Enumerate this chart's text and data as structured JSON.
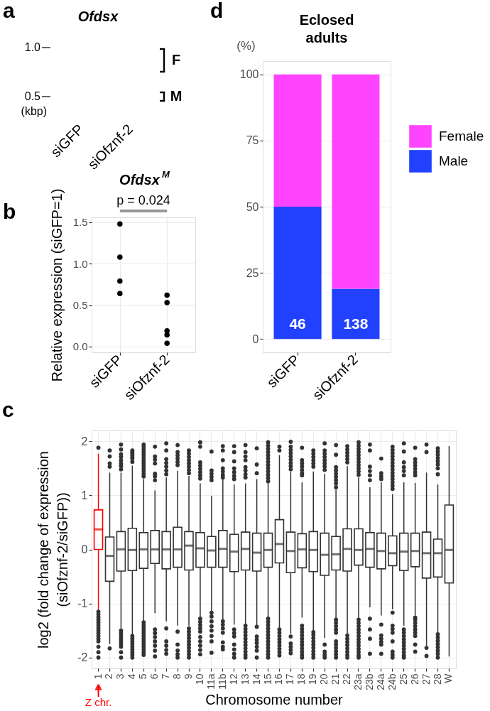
{
  "chart_data": [
    {
      "type": "other",
      "title": "Ofdsx",
      "categories": [
        "siGFP",
        "siOfznf-2"
      ],
      "annotations": [
        "a",
        "1.0",
        "0.5",
        "(kbp)",
        "F",
        "M"
      ]
    },
    {
      "type": "scatter",
      "title": "Ofdsx$^{M}$",
      "categories": [
        "siGFP",
        "siOfznf-2"
      ],
      "series": [
        {
          "color": "#000000",
          "values": [
            1.48,
            0.62
          ]
        },
        {
          "color": "#000000",
          "values": [
            1.08,
            0.53
          ]
        },
        {
          "color": "#000000",
          "values": [
            0.79,
            0.19
          ]
        },
        {
          "color": "#000000",
          "values": [
            0.64,
            0.14
          ]
        },
        {
          "color": "#000000",
          "values": [
            null,
            0.04
          ]
        }
      ],
      "marker": "circle",
      "ylim": [
        -0.07,
        1.56
      ],
      "yticks": [
        {
          "value": 0,
          "label": "0.0"
        },
        0.5,
        {
          "value": 1,
          "label": "1.0"
        },
        1.5
      ],
      "ylabel": "Relative expression (siGFP=1)",
      "grid": true,
      "annotations": [
        "b",
        "p = 0.024"
      ]
    },
    {
      "type": "bar",
      "title": "Eclosed\nadults",
      "categories": [
        "siGFP",
        "siOfznf-2"
      ],
      "series": [
        {
          "name": "Male",
          "color": "#2141ff",
          "values": [
            50,
            19
          ]
        },
        {
          "name": "Female",
          "color": "#ff44ff",
          "values": [
            50,
            81
          ]
        }
      ],
      "stacked": true,
      "ylim": [
        -5,
        105
      ],
      "yticks": [
        0,
        25,
        50,
        75,
        100
      ],
      "ylabel": "(%)",
      "grid": "y",
      "legend": "right",
      "annotations": [
        "d",
        "46",
        "138"
      ]
    },
    {
      "type": "box",
      "categories": [
        "1",
        "2",
        "3",
        "4",
        "5",
        "6",
        "7",
        "8",
        "9",
        "10",
        "11a",
        "11b",
        "12",
        "13",
        "14",
        "15",
        "16",
        "17",
        "18",
        "19",
        "20",
        "21",
        "22",
        "23a",
        "23b",
        "24a",
        "24b",
        "25",
        "26",
        "27",
        "28",
        "W"
      ],
      "boxes": [
        {
          "low": -1.12,
          "q1": 0.0,
          "median": 0.37,
          "q3": 0.73,
          "high": 1.77,
          "outliers": [
            1.88,
            -1.15,
            -1.2,
            -1.25,
            -1.3,
            -1.35,
            -1.4,
            -1.45,
            -1.5,
            -1.55,
            -1.6,
            -1.65,
            -1.7,
            -1.8,
            -1.9,
            -2.0
          ]
        },
        {
          "low": -1.75,
          "q1": -0.59,
          "median": -0.12,
          "q3": 0.23,
          "high": 1.42,
          "outliers": [
            1.83,
            1.72,
            1.59,
            1.53,
            -1.83
          ]
        },
        {
          "low": -1.46,
          "q1": -0.4,
          "median": 0.0,
          "q3": 0.33,
          "high": 1.42,
          "outliers": [
            1.94,
            1.85,
            1.76,
            1.71,
            1.65,
            1.59,
            1.54,
            1.48,
            -1.5,
            -1.55,
            -1.6,
            -1.65,
            -1.7,
            -1.75,
            -1.8,
            -1.9,
            -2.0
          ]
        },
        {
          "low": -1.57,
          "q1": -0.39,
          "median": -0.01,
          "q3": 0.39,
          "high": 1.55,
          "outliers": [
            1.83,
            1.8,
            1.77,
            1.74,
            1.71,
            1.68,
            1.62,
            -1.6,
            -1.65,
            -1.7,
            -1.75,
            -1.8,
            -1.85,
            -1.9,
            -1.95,
            -2.0
          ]
        },
        {
          "low": -1.33,
          "q1": -0.35,
          "median": 0.0,
          "q3": 0.31,
          "high": 1.3,
          "outliers": [
            1.94,
            1.9,
            1.85,
            1.8,
            1.75,
            1.7,
            1.65,
            1.6,
            1.55,
            1.5,
            1.45,
            1.4,
            1.35,
            -1.35,
            -1.4,
            -1.45,
            -1.5,
            -1.55,
            -1.6,
            -1.65,
            -1.7,
            -1.75,
            -1.8,
            -1.85,
            -1.9,
            -1.95
          ]
        },
        {
          "low": -1.18,
          "q1": -0.26,
          "median": 0.0,
          "q3": 0.35,
          "high": 1.09,
          "outliers": [
            1.9,
            1.72,
            1.66,
            1.59,
            1.4,
            1.35,
            1.28,
            -1.48,
            -1.55,
            -1.62,
            -1.7,
            -1.78,
            -1.87,
            -1.98
          ]
        },
        {
          "low": -1.33,
          "q1": -0.36,
          "median": 0.0,
          "q3": 0.33,
          "high": 1.33,
          "outliers": [
            1.96,
            1.83,
            1.67,
            1.6,
            1.53,
            1.46,
            1.39,
            -1.46,
            -1.7,
            -1.78,
            -1.86,
            -1.93
          ]
        },
        {
          "low": -1.41,
          "q1": -0.33,
          "median": 0.0,
          "q3": 0.41,
          "high": 1.45,
          "outliers": [
            1.93,
            1.8,
            1.74,
            1.68,
            1.62,
            1.56,
            -1.52,
            -1.76,
            -1.87,
            -1.94,
            -2.0
          ]
        },
        {
          "low": -1.41,
          "q1": -0.38,
          "median": 0.07,
          "q3": 0.33,
          "high": 1.36,
          "outliers": [
            1.83,
            1.77,
            1.71,
            1.65,
            1.59,
            1.53,
            1.47,
            1.41,
            -1.46,
            -1.52,
            -1.58,
            -1.64,
            -1.7,
            -1.76,
            -1.82,
            -1.88,
            -1.94,
            -2.0
          ]
        },
        {
          "low": -1.26,
          "q1": -0.33,
          "median": 0.02,
          "q3": 0.31,
          "high": 1.22,
          "outliers": [
            1.98,
            1.9,
            1.61,
            1.55,
            1.49,
            1.43,
            1.37,
            1.31,
            -1.28,
            -1.34,
            -1.4,
            -1.46,
            -1.52,
            -1.62,
            -1.7,
            -1.78,
            -1.86,
            -1.94
          ]
        },
        {
          "low": -1.15,
          "q1": -0.33,
          "median": -0.02,
          "q3": 0.24,
          "high": 0.99,
          "outliers": [
            1.81,
            1.46,
            1.4,
            1.34,
            1.28,
            -1.17,
            -1.24,
            -1.33,
            -1.42,
            -1.5,
            -1.6,
            -1.7,
            -1.91
          ]
        },
        {
          "low": -1.3,
          "q1": -0.33,
          "median": 0.01,
          "q3": 0.35,
          "high": 1.3,
          "outliers": [
            1.91,
            1.83,
            1.65,
            1.5,
            1.44,
            1.38,
            1.33,
            -1.33,
            -1.39,
            -1.46,
            -1.54,
            -1.72,
            -1.8,
            -1.85
          ]
        },
        {
          "low": -1.39,
          "q1": -0.41,
          "median": -0.04,
          "q3": 0.28,
          "high": 1.2,
          "outliers": [
            1.91,
            1.8,
            1.63,
            1.5,
            1.43,
            1.36,
            1.3,
            -1.48,
            -1.55,
            -1.61,
            -1.76,
            -1.85,
            -1.93,
            -2.0
          ]
        },
        {
          "low": -1.39,
          "q1": -0.38,
          "median": 0.01,
          "q3": 0.32,
          "high": 1.22,
          "outliers": [
            1.93,
            1.8,
            1.72,
            1.65,
            1.52,
            1.46,
            1.39,
            1.33,
            -1.41,
            -1.47,
            -1.53,
            -1.59,
            -1.65,
            -1.71,
            -1.77,
            -1.83,
            -1.89,
            -1.95,
            -2.0
          ]
        },
        {
          "low": -1.41,
          "q1": -0.4,
          "median": -0.06,
          "q3": 0.3,
          "high": 1.3,
          "outliers": [
            1.87,
            1.57,
            1.41,
            -1.43,
            -1.61,
            -1.67,
            -1.73,
            -1.8,
            -1.87,
            -2.0
          ]
        },
        {
          "low": -1.26,
          "q1": -0.33,
          "median": -0.01,
          "q3": 0.3,
          "high": 1.24,
          "outliers": [
            1.98,
            1.92,
            1.86,
            1.8,
            1.74,
            1.68,
            1.62,
            1.56,
            1.5,
            1.44,
            1.38,
            1.32,
            1.26,
            -1.28,
            -1.34,
            -1.4,
            -1.46,
            -1.52,
            -1.58,
            -1.64,
            -1.7,
            -1.76,
            -1.82,
            -1.88,
            -1.94,
            -2.0
          ]
        },
        {
          "low": -1.45,
          "q1": -0.25,
          "median": 0.1,
          "q3": 0.55,
          "high": 1.74,
          "outliers": [
            1.9,
            1.83,
            -1.48,
            -1.54,
            -1.6,
            -1.66,
            -1.72,
            -1.78,
            -1.84,
            -1.9,
            -1.96
          ]
        },
        {
          "low": -1.56,
          "q1": -0.43,
          "median": -0.03,
          "q3": 0.32,
          "high": 1.43,
          "outliers": [
            1.99,
            1.9,
            1.84,
            1.78,
            1.72,
            1.66,
            1.6,
            1.54,
            1.48,
            -1.61,
            -1.74,
            -1.8,
            -1.86,
            -1.92
          ]
        },
        {
          "low": -1.26,
          "q1": -0.34,
          "median": 0.0,
          "q3": 0.29,
          "high": 1.24,
          "outliers": [
            1.88,
            1.65,
            1.59,
            1.53,
            1.47,
            1.41,
            1.37,
            -1.41,
            -1.47,
            -1.53,
            -1.59,
            -1.65,
            -1.71,
            -1.77,
            -1.83,
            -1.89,
            -1.95,
            -2.0
          ]
        },
        {
          "low": -1.5,
          "q1": -0.41,
          "median": -0.01,
          "q3": 0.33,
          "high": 1.44,
          "outliers": [
            1.83,
            1.77,
            1.71,
            1.65,
            1.59,
            1.53,
            -1.53,
            -1.58,
            -1.64,
            -1.7,
            -1.76,
            -1.82,
            -1.88,
            -1.94,
            -2.0
          ]
        },
        {
          "low": -1.64,
          "q1": -0.48,
          "median": -0.1,
          "q3": 0.3,
          "high": 1.4,
          "outliers": [
            1.96,
            1.83,
            1.77,
            1.71,
            1.65,
            1.59,
            1.53,
            1.47,
            -1.76,
            -1.89,
            -1.95,
            -2.0
          ]
        },
        {
          "low": -1.28,
          "q1": -0.38,
          "median": -0.09,
          "q3": 0.24,
          "high": 1.11,
          "outliers": [
            1.93,
            1.75,
            1.52,
            1.46,
            1.4,
            1.34,
            1.28,
            1.22,
            1.15,
            -1.3,
            -1.36,
            -1.42,
            -1.48,
            -1.54,
            -1.7,
            -1.76,
            -1.82,
            -1.88,
            -1.94,
            -2.0
          ]
        },
        {
          "low": -1.57,
          "q1": -0.4,
          "median": 0.01,
          "q3": 0.38,
          "high": 1.54,
          "outliers": [
            1.91,
            1.85,
            1.79,
            1.73,
            1.67,
            1.61,
            -1.59,
            -1.65,
            -1.71,
            -1.77,
            -1.83,
            -1.89,
            -1.95,
            -2.0
          ]
        },
        {
          "low": -1.28,
          "q1": -0.29,
          "median": -0.01,
          "q3": 0.38,
          "high": 1.33,
          "outliers": [
            1.98,
            1.92,
            1.86,
            1.8,
            1.74,
            1.68,
            1.62,
            1.56,
            1.5,
            1.44,
            1.38,
            -1.3,
            -1.36,
            -1.42,
            -1.48,
            -1.54,
            -1.6,
            -1.66,
            -1.72,
            -1.78,
            -1.84,
            -1.9,
            -1.96,
            -2.0
          ]
        },
        {
          "low": -1.07,
          "q1": -0.33,
          "median": 0.01,
          "q3": 0.31,
          "high": 1.15,
          "outliers": [
            1.94,
            1.83,
            1.53,
            1.45,
            1.37,
            1.28,
            -1.28,
            -1.48,
            -1.65,
            -1.93
          ]
        },
        {
          "low": -1.22,
          "q1": -0.36,
          "median": -0.03,
          "q3": 0.3,
          "high": 1.24,
          "outliers": [
            1.68,
            1.41,
            1.35,
            1.3,
            -1.39,
            -1.59,
            -1.65,
            -1.71,
            -1.76,
            -1.93
          ]
        },
        {
          "low": -1.11,
          "q1": -0.3,
          "median": -0.07,
          "q3": 0.25,
          "high": 1.02,
          "outliers": [
            1.9,
            1.84,
            1.78,
            1.72,
            1.66,
            1.6,
            1.54,
            1.48,
            1.42,
            1.36,
            1.3,
            1.24,
            1.18,
            1.12,
            -1.17,
            -1.41,
            -1.47,
            -1.54,
            -1.7,
            -1.89,
            -1.95,
            -2.0
          ]
        },
        {
          "low": -1.41,
          "q1": -0.39,
          "median": -0.04,
          "q3": 0.3,
          "high": 1.24,
          "outliers": [
            1.96,
            1.81,
            1.61,
            1.52,
            1.45,
            1.37,
            -1.48,
            -1.54,
            -1.6,
            -1.66,
            -1.72,
            -1.78,
            -1.84,
            -1.9,
            -1.96,
            -2.0
          ]
        },
        {
          "low": -1.22,
          "q1": -0.32,
          "median": -0.03,
          "q3": 0.3,
          "high": 1.23,
          "outliers": [
            1.88,
            1.67,
            1.61,
            1.55,
            1.49,
            1.43,
            1.37,
            -1.26,
            -1.3,
            -1.36,
            -1.42,
            -1.48,
            -1.54,
            -1.6,
            -1.76,
            -1.89
          ]
        },
        {
          "low": -1.78,
          "q1": -0.53,
          "median": -0.07,
          "q3": 0.32,
          "high": 1.42,
          "outliers": [
            1.94,
            1.8,
            -1.82,
            -1.97
          ]
        },
        {
          "low": -1.54,
          "q1": -0.51,
          "median": -0.07,
          "q3": 0.19,
          "high": 1.2,
          "outliers": [
            1.87,
            1.81,
            1.75,
            1.69,
            1.63,
            1.57,
            1.5,
            1.39,
            -1.57,
            -1.63,
            -1.69,
            -1.75,
            -1.81,
            -1.87,
            -1.93,
            -2.0
          ]
        },
        {
          "low": -1.98,
          "q1": -0.62,
          "median": -0.01,
          "q3": 0.82,
          "high": 1.91
        }
      ],
      "colors": [
        "#ff0000",
        "#333333",
        "#333333",
        "#333333",
        "#333333",
        "#333333",
        "#333333",
        "#333333",
        "#333333",
        "#333333",
        "#333333",
        "#333333",
        "#333333",
        "#333333",
        "#333333",
        "#333333",
        "#333333",
        "#333333",
        "#333333",
        "#333333",
        "#333333",
        "#333333",
        "#333333",
        "#333333",
        "#333333",
        "#333333",
        "#333333",
        "#333333",
        "#333333",
        "#333333",
        "#333333",
        "#333333"
      ],
      "color": "#333333",
      "ylim": [
        -2.2,
        2.2
      ],
      "yticks": [
        -2,
        -1,
        0,
        1,
        2
      ],
      "xlabel": "Chromosome number",
      "ylabel": "log2 (fold change of expression\n(siOfznf-2/siGFP))",
      "grid": true,
      "annotations": [
        "c",
        "Z chr."
      ]
    }
  ]
}
